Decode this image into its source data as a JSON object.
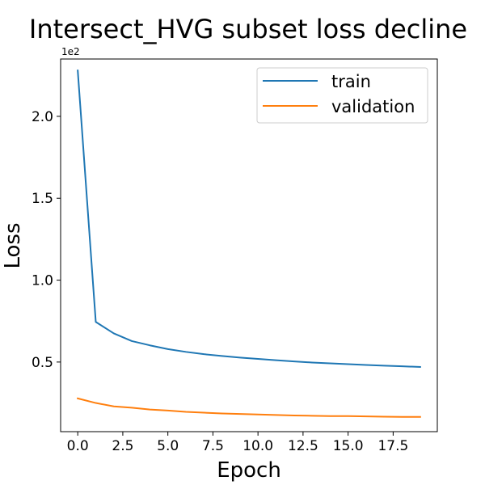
{
  "chart_data": {
    "type": "line",
    "title": "Intersect_HVG subset loss decline",
    "xlabel": "Epoch",
    "ylabel": "Loss",
    "y_offset_label": "1e2",
    "xlim": [
      -0.95,
      19.95
    ],
    "ylim": [
      0.075,
      2.35
    ],
    "x_ticks": [
      0,
      2.5,
      5,
      7.5,
      10,
      12.5,
      15,
      17.5
    ],
    "x_tick_labels": [
      "0.0",
      "2.5",
      "5.0",
      "7.5",
      "10.0",
      "12.5",
      "15.0",
      "17.5"
    ],
    "y_ticks": [
      0.5,
      1.0,
      1.5,
      2.0
    ],
    "y_tick_labels": [
      "0.5",
      "1.0",
      "1.5",
      "2.0"
    ],
    "grid": false,
    "legend_position": "top-right",
    "x": [
      0,
      1,
      2,
      3,
      4,
      5,
      6,
      7,
      8,
      9,
      10,
      11,
      12,
      13,
      14,
      15,
      16,
      17,
      18,
      19
    ],
    "series": [
      {
        "name": "train",
        "color": "#1f77b4",
        "values": [
          2.28,
          0.745,
          0.675,
          0.628,
          0.602,
          0.579,
          0.562,
          0.548,
          0.537,
          0.527,
          0.519,
          0.511,
          0.504,
          0.497,
          0.492,
          0.487,
          0.482,
          0.478,
          0.474,
          0.47
        ]
      },
      {
        "name": "validation",
        "color": "#ff7f0e",
        "values": [
          0.278,
          0.25,
          0.229,
          0.221,
          0.21,
          0.204,
          0.196,
          0.191,
          0.186,
          0.183,
          0.18,
          0.177,
          0.174,
          0.172,
          0.17,
          0.17,
          0.168,
          0.166,
          0.165,
          0.165
        ]
      }
    ]
  }
}
